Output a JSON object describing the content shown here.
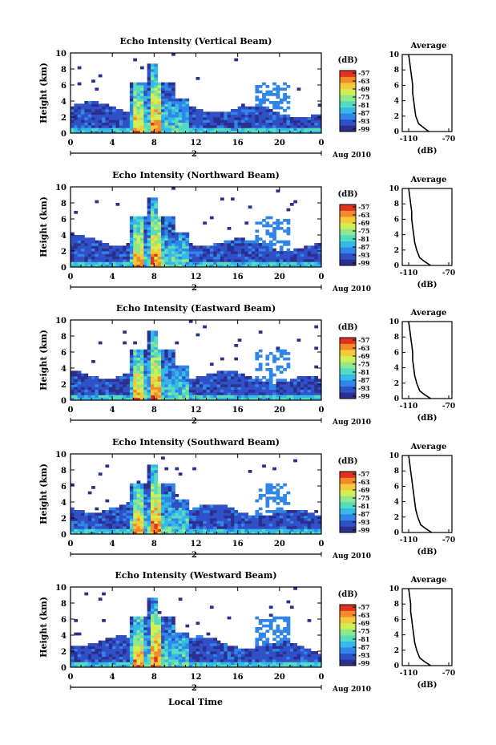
{
  "figure": {
    "xlabel_bottom": "Local Time",
    "date_label": "Aug 2010",
    "date_day": "2"
  },
  "chart_data": [
    {
      "type": "heatmap",
      "title": "Echo Intensity (Vertical Beam)",
      "ylabel": "Height (km)",
      "xlabel": "",
      "x_ticks": [
        "0",
        "4",
        "8",
        "12",
        "16",
        "20",
        "0"
      ],
      "y_ticks": [
        "0",
        "2",
        "4",
        "6",
        "8",
        "10"
      ],
      "xlim": [
        0,
        24
      ],
      "ylim": [
        0,
        10
      ],
      "colorbar": {
        "unit": "(dB)",
        "ticks": [
          "-57",
          "-63",
          "-69",
          "-75",
          "-81",
          "-87",
          "-93",
          "-99"
        ],
        "range": [
          -99,
          -57
        ]
      },
      "profile": {
        "title": "Average",
        "xlabel": "(dB)",
        "x_ticks": [
          "-110",
          "-70"
        ],
        "y_ticks": [
          "0",
          "2",
          "4",
          "6",
          "8",
          "10"
        ],
        "points": [
          [
            -90,
            0
          ],
          [
            -95,
            0.5
          ],
          [
            -100,
            1
          ],
          [
            -103,
            2
          ],
          [
            -104,
            3
          ],
          [
            -105,
            4
          ],
          [
            -106,
            5
          ],
          [
            -106,
            6
          ],
          [
            -107,
            7
          ],
          [
            -108,
            8
          ],
          [
            -109,
            9
          ],
          [
            -110,
            10
          ]
        ]
      }
    },
    {
      "type": "heatmap",
      "title": "Echo Intensity (Northward Beam)",
      "ylabel": "Height (km)",
      "xlabel": "",
      "x_ticks": [
        "0",
        "4",
        "8",
        "12",
        "16",
        "20",
        "0"
      ],
      "y_ticks": [
        "0",
        "2",
        "4",
        "6",
        "8",
        "10"
      ],
      "xlim": [
        0,
        24
      ],
      "ylim": [
        0,
        10
      ],
      "colorbar": {
        "unit": "(dB)",
        "ticks": [
          "-57",
          "-63",
          "-69",
          "-75",
          "-81",
          "-87",
          "-93",
          "-99"
        ],
        "range": [
          -99,
          -57
        ]
      },
      "profile": {
        "title": "Average",
        "xlabel": "(dB)",
        "x_ticks": [
          "-110",
          "-70"
        ],
        "y_ticks": [
          "0",
          "2",
          "4",
          "6",
          "8",
          "10"
        ],
        "points": [
          [
            -88,
            0
          ],
          [
            -94,
            0.5
          ],
          [
            -99,
            1
          ],
          [
            -102,
            2
          ],
          [
            -104,
            3
          ],
          [
            -105,
            4
          ],
          [
            -106,
            5
          ],
          [
            -107,
            6
          ],
          [
            -107,
            7
          ],
          [
            -108,
            8
          ],
          [
            -109,
            9
          ],
          [
            -110,
            10
          ]
        ]
      }
    },
    {
      "type": "heatmap",
      "title": "Echo Intensity (Eastward Beam)",
      "ylabel": "Height (km)",
      "xlabel": "",
      "x_ticks": [
        "0",
        "4",
        "8",
        "12",
        "16",
        "20",
        "0"
      ],
      "y_ticks": [
        "0",
        "2",
        "4",
        "6",
        "8",
        "10"
      ],
      "xlim": [
        0,
        24
      ],
      "ylim": [
        0,
        10
      ],
      "colorbar": {
        "unit": "(dB)",
        "ticks": [
          "-57",
          "-63",
          "-69",
          "-75",
          "-81",
          "-87",
          "-93",
          "-99"
        ],
        "range": [
          -99,
          -57
        ]
      },
      "profile": {
        "title": "Average",
        "xlabel": "(dB)",
        "x_ticks": [
          "-110",
          "-70"
        ],
        "y_ticks": [
          "0",
          "2",
          "4",
          "6",
          "8",
          "10"
        ],
        "points": [
          [
            -88,
            0
          ],
          [
            -94,
            0.5
          ],
          [
            -99,
            1
          ],
          [
            -102,
            2
          ],
          [
            -104,
            3
          ],
          [
            -105,
            4
          ],
          [
            -106,
            5
          ],
          [
            -106,
            6
          ],
          [
            -107,
            7
          ],
          [
            -108,
            8
          ],
          [
            -109,
            9
          ],
          [
            -110,
            10
          ]
        ]
      }
    },
    {
      "type": "heatmap",
      "title": "Echo Intensity (Southward Beam)",
      "ylabel": "Height (km)",
      "xlabel": "",
      "x_ticks": [
        "0",
        "4",
        "8",
        "12",
        "16",
        "20",
        "0"
      ],
      "y_ticks": [
        "0",
        "2",
        "4",
        "6",
        "8",
        "10"
      ],
      "xlim": [
        0,
        24
      ],
      "ylim": [
        0,
        10
      ],
      "colorbar": {
        "unit": "(dB)",
        "ticks": [
          "-57",
          "-63",
          "-69",
          "-75",
          "-81",
          "-87",
          "-93",
          "-99"
        ],
        "range": [
          -99,
          -57
        ]
      },
      "profile": {
        "title": "Average",
        "xlabel": "(dB)",
        "x_ticks": [
          "-110",
          "-70"
        ],
        "y_ticks": [
          "0",
          "2",
          "4",
          "6",
          "8",
          "10"
        ],
        "points": [
          [
            -87,
            0
          ],
          [
            -93,
            0.5
          ],
          [
            -98,
            1
          ],
          [
            -101,
            2
          ],
          [
            -103,
            3
          ],
          [
            -104,
            4
          ],
          [
            -105,
            5
          ],
          [
            -106,
            6
          ],
          [
            -107,
            7
          ],
          [
            -108,
            8
          ],
          [
            -109,
            9
          ],
          [
            -110,
            10
          ]
        ]
      }
    },
    {
      "type": "heatmap",
      "title": "Echo Intensity (Westward Beam)",
      "ylabel": "Height (km)",
      "xlabel": "",
      "x_ticks": [
        "0",
        "4",
        "8",
        "12",
        "16",
        "20",
        "0"
      ],
      "y_ticks": [
        "0",
        "2",
        "4",
        "6",
        "8",
        "10"
      ],
      "xlim": [
        0,
        24
      ],
      "ylim": [
        0,
        10
      ],
      "colorbar": {
        "unit": "(dB)",
        "ticks": [
          "-57",
          "-63",
          "-69",
          "-75",
          "-81",
          "-87",
          "-93",
          "-99"
        ],
        "range": [
          -99,
          -57
        ]
      },
      "profile": {
        "title": "Average",
        "xlabel": "(dB)",
        "x_ticks": [
          "-110",
          "-70"
        ],
        "y_ticks": [
          "0",
          "2",
          "4",
          "6",
          "8",
          "10"
        ],
        "points": [
          [
            -88,
            0
          ],
          [
            -94,
            0.5
          ],
          [
            -99,
            1
          ],
          [
            -102,
            2
          ],
          [
            -104,
            3
          ],
          [
            -105,
            4
          ],
          [
            -106,
            5
          ],
          [
            -107,
            6
          ],
          [
            -108,
            7
          ],
          [
            -108,
            8
          ],
          [
            -109,
            9
          ],
          [
            -110,
            10
          ]
        ]
      }
    }
  ],
  "colormap": [
    "#2b2f8e",
    "#3050c8",
    "#2f86e8",
    "#35b9e6",
    "#55dcc0",
    "#8fe88c",
    "#d2ee55",
    "#f6c93a",
    "#f48a2a",
    "#e0331f"
  ]
}
